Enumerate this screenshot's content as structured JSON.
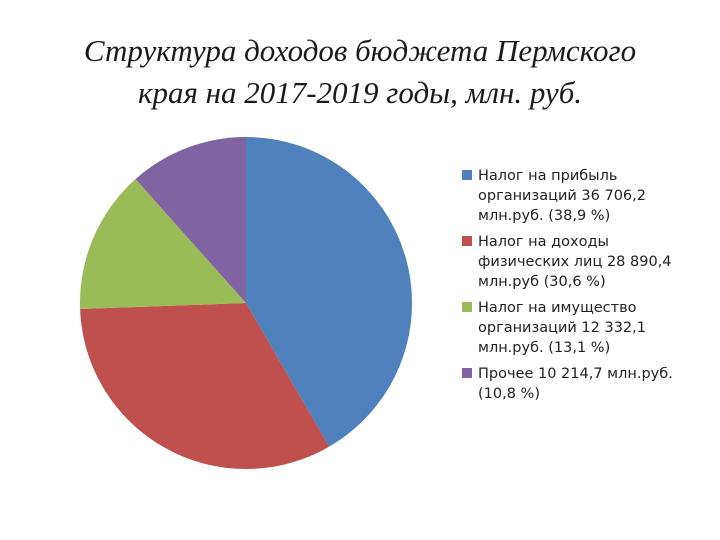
{
  "title": {
    "line1": "Структура доходов бюджета Пермского",
    "line2": "края на 2017-2019 годы, млн. руб."
  },
  "chart_data": {
    "type": "pie",
    "title": "Структура доходов бюджета Пермского края на 2017-2019 годы, млн. руб.",
    "categories": [
      "Налог на прибыль организаций 36 706,2 млн.руб. (38,9 %)",
      "Налог на доходы физических лиц 28 890,4 млн.руб (30,6 %)",
      "Налог на имущество организаций 12 332,1 млн.руб. (13,1 %)",
      "Прочее 10 214,7 млн.руб. (10,8 %)"
    ],
    "values": [
      36706.2,
      28890.4,
      12332.1,
      10214.7
    ],
    "colors": [
      "#4f81bd",
      "#c0504d",
      "#9bbb59",
      "#8064a2"
    ],
    "legend_position": "right"
  },
  "legend": {
    "items": [
      {
        "lines": [
          "Налог на прибыль",
          "организаций 36 706,2",
          "млн.руб. (38,9 %)"
        ]
      },
      {
        "lines": [
          "Налог на доходы",
          "физических лиц  28 890,4",
          "млн.руб (30,6 %)"
        ]
      },
      {
        "lines": [
          "Налог на имущество",
          "организаций 12 332,1",
          "млн.руб. (13,1 %)"
        ]
      },
      {
        "lines": [
          "Прочее 10 214,7 млн.руб.",
          "(10,8 %)"
        ]
      }
    ]
  }
}
